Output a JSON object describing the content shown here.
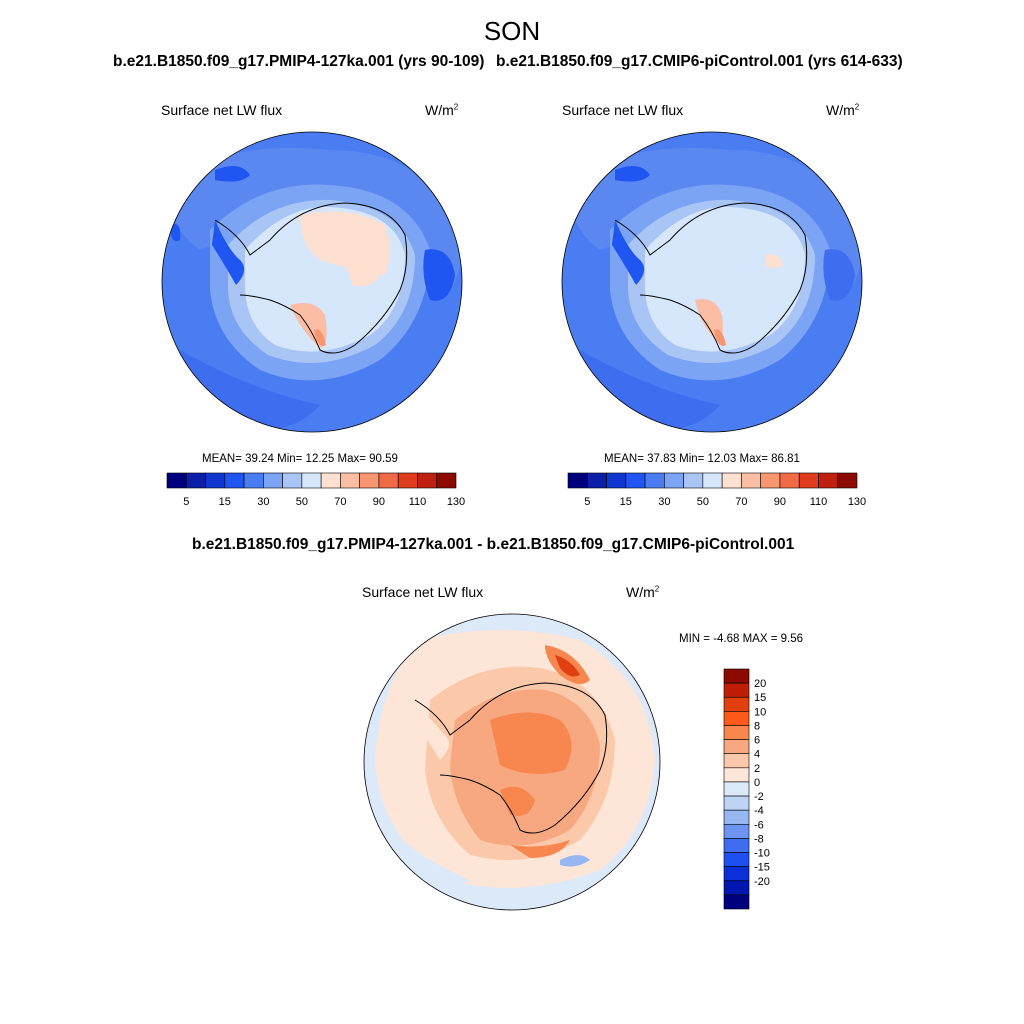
{
  "figure": {
    "season_title": "SON"
  },
  "panels": [
    {
      "id": "pmip4",
      "title": "b.e21.B1850.f09_g17.PMIP4-127ka.001 (yrs 90-109)",
      "variable": "Surface net LW flux",
      "units_base": "W/m",
      "units_exp": "2",
      "stats": "MEAN=  39.24  Min=  12.25  Max=  90.59"
    },
    {
      "id": "picontrol",
      "title": "b.e21.B1850.f09_g17.CMIP6-piControl.001 (yrs 614-633)",
      "variable": "Surface net LW flux",
      "units_base": "W/m",
      "units_exp": "2",
      "stats": "MEAN=  37.83  Min=  12.03  Max=  86.81"
    }
  ],
  "diff_panel": {
    "title": "b.e21.B1850.f09_g17.PMIP4-127ka.001 - b.e21.B1850.f09_g17.CMIP6-piControl.001",
    "variable": "Surface net LW flux",
    "units_base": "W/m",
    "units_exp": "2",
    "stats": "MIN =  -4.68 MAX =   9.56"
  },
  "abs_colorbar": {
    "colors": [
      "#00007f",
      "#0a1ea8",
      "#1036d0",
      "#1f55f0",
      "#4a7df2",
      "#7ba4f4",
      "#a8c5f6",
      "#d6e6fb",
      "#fde0d0",
      "#fbbea4",
      "#f89670",
      "#f06a45",
      "#e03c1e",
      "#bf2010",
      "#8c0a00"
    ],
    "tick_labels": [
      "5",
      "15",
      "30",
      "50",
      "70",
      "90",
      "110",
      "130"
    ]
  },
  "diff_colorbar": {
    "colors": [
      "#8c0a00",
      "#bf1e06",
      "#e0400f",
      "#fb5a1a",
      "#f8864f",
      "#f8a880",
      "#fbc8aa",
      "#fde6d8",
      "#dce9f9",
      "#bed4f5",
      "#97b7f2",
      "#6c94f0",
      "#3f6df0",
      "#1e4ff0",
      "#0c30d8",
      "#0216b0",
      "#00007f"
    ],
    "tick_labels": [
      "20",
      "15",
      "10",
      "8",
      "6",
      "4",
      "2",
      "0",
      "-2",
      "-4",
      "-6",
      "-8",
      "-10",
      "-15",
      "-20"
    ]
  }
}
